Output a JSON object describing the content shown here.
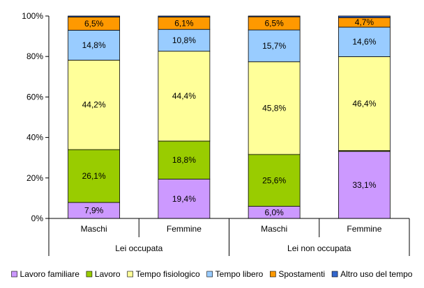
{
  "chart_data": {
    "type": "bar",
    "stacked": true,
    "percent_stacked": true,
    "categories": [
      "Maschi",
      "Femmine",
      "Maschi",
      "Femmine"
    ],
    "groups": [
      {
        "label": "Lei occupata",
        "categories": [
          0,
          1
        ]
      },
      {
        "label": "Lei non occupata",
        "categories": [
          2,
          3
        ]
      }
    ],
    "series": [
      {
        "name": "Lavoro familiare",
        "color": "#cc99ff",
        "values": [
          7.9,
          19.4,
          6.0,
          33.1
        ],
        "labels": [
          "7,9%",
          "19,4%",
          "6,0%",
          "33,1%"
        ]
      },
      {
        "name": "Lavoro",
        "color": "#99cc00",
        "values": [
          26.1,
          18.8,
          25.6,
          0.4
        ],
        "labels": [
          "26,1%",
          "18,8%",
          "25,6%",
          ""
        ]
      },
      {
        "name": "Tempo fisiologico",
        "color": "#ffff99",
        "values": [
          44.2,
          44.4,
          45.8,
          46.4
        ],
        "labels": [
          "44,2%",
          "44,4%",
          "45,8%",
          "46,4%"
        ]
      },
      {
        "name": "Tempo libero",
        "color": "#99ccff",
        "values": [
          14.8,
          10.8,
          15.7,
          14.6
        ],
        "labels": [
          "14,8%",
          "10,8%",
          "15,7%",
          "14,6%"
        ]
      },
      {
        "name": "Spostamenti",
        "color": "#ff9900",
        "values": [
          6.5,
          6.1,
          6.5,
          4.7
        ],
        "labels": [
          "6,5%",
          "6,1%",
          "6,5%",
          "4,7%"
        ]
      },
      {
        "name": "Altro uso del tempo",
        "color": "#3366cc",
        "values": [
          0.5,
          0.5,
          0.4,
          0.8
        ],
        "labels": [
          "",
          "",
          "",
          ""
        ]
      }
    ],
    "ylim": [
      0,
      100
    ],
    "yticks": [
      "0%",
      "20%",
      "40%",
      "60%",
      "80%",
      "100%"
    ],
    "title": "",
    "xlabel": "",
    "ylabel": "",
    "grid": false,
    "legend_position": "bottom"
  }
}
